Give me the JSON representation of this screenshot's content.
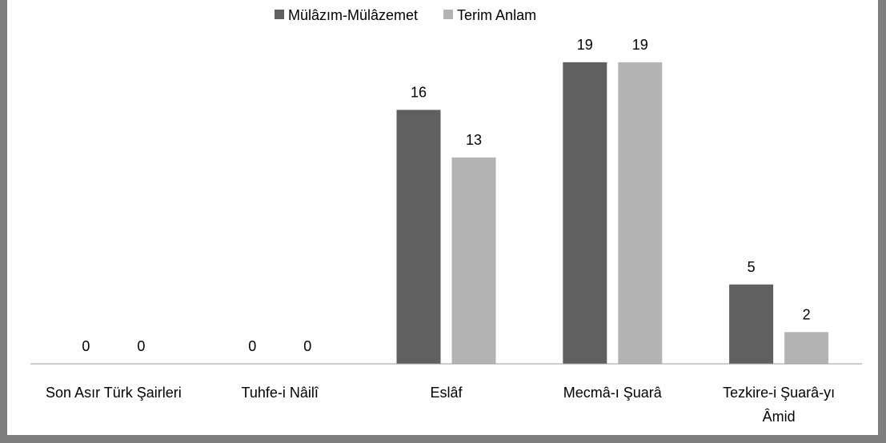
{
  "chart_data": {
    "type": "bar",
    "categories": [
      "Son Asır Türk Şairleri",
      "Tuhfe-i Nâilî",
      "Eslâf",
      "Mecmâ-ı Şuarâ",
      "Tezkire-i Şuarâ-yı Âmid"
    ],
    "series": [
      {
        "name": "Mülâzım-Mülâzemet",
        "color": "#606060",
        "values": [
          0,
          0,
          16,
          19,
          5
        ]
      },
      {
        "name": "Terim Anlam",
        "color": "#b3b3b3",
        "values": [
          0,
          0,
          13,
          19,
          2
        ]
      }
    ],
    "ylim": [
      0,
      20
    ],
    "legend": "top"
  }
}
